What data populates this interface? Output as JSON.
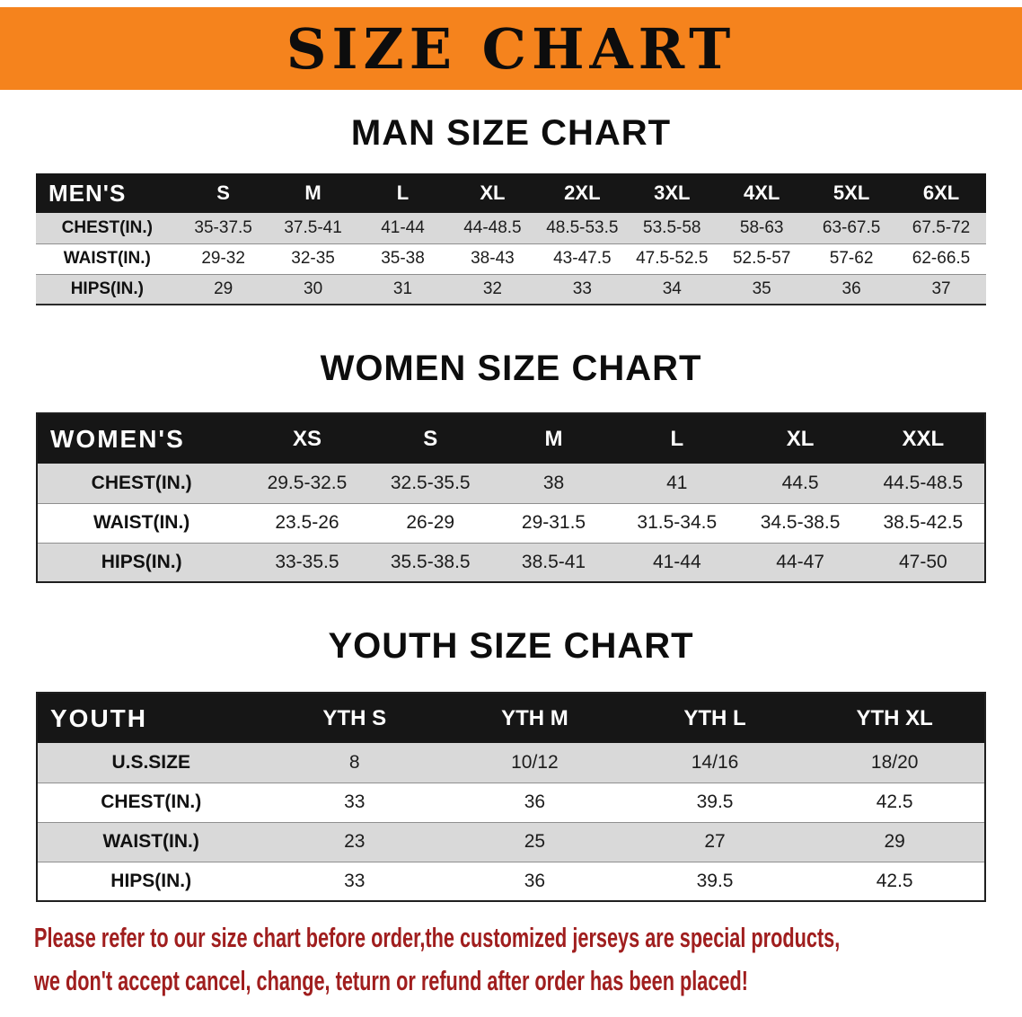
{
  "banner": {
    "title": "SIZE CHART"
  },
  "colors": {
    "banner-bg": "#f5831d",
    "table-header-bg": "#161616",
    "row-alt-bg": "#d9d9d9",
    "note-text": "#a01e1e"
  },
  "men": {
    "heading": "MAN SIZE CHART",
    "header": [
      "MEN'S",
      "S",
      "M",
      "L",
      "XL",
      "2XL",
      "3XL",
      "4XL",
      "5XL",
      "6XL"
    ],
    "rows": [
      {
        "label": "CHEST(IN.)",
        "values": [
          "35-37.5",
          "37.5-41",
          "41-44",
          "44-48.5",
          "48.5-53.5",
          "53.5-58",
          "58-63",
          "63-67.5",
          "67.5-72"
        ]
      },
      {
        "label": "WAIST(IN.)",
        "values": [
          "29-32",
          "32-35",
          "35-38",
          "38-43",
          "43-47.5",
          "47.5-52.5",
          "52.5-57",
          "57-62",
          "62-66.5"
        ]
      },
      {
        "label": "HIPS(IN.)",
        "values": [
          "29",
          "30",
          "31",
          "32",
          "33",
          "34",
          "35",
          "36",
          "37"
        ]
      }
    ]
  },
  "women": {
    "heading": "WOMEN SIZE CHART",
    "header": [
      "WOMEN'S",
      "XS",
      "S",
      "M",
      "L",
      "XL",
      "XXL"
    ],
    "rows": [
      {
        "label": "CHEST(IN.)",
        "values": [
          "29.5-32.5",
          "32.5-35.5",
          "38",
          "41",
          "44.5",
          "44.5-48.5"
        ]
      },
      {
        "label": "WAIST(IN.)",
        "values": [
          "23.5-26",
          "26-29",
          "29-31.5",
          "31.5-34.5",
          "34.5-38.5",
          "38.5-42.5"
        ]
      },
      {
        "label": "HIPS(IN.)",
        "values": [
          "33-35.5",
          "35.5-38.5",
          "38.5-41",
          "41-44",
          "44-47",
          "47-50"
        ]
      }
    ]
  },
  "youth": {
    "heading": "YOUTH SIZE CHART",
    "header": [
      "YOUTH",
      "YTH S",
      "YTH M",
      "YTH L",
      "YTH XL"
    ],
    "rows": [
      {
        "label": "U.S.SIZE",
        "values": [
          "8",
          "10/12",
          "14/16",
          "18/20"
        ]
      },
      {
        "label": "CHEST(IN.)",
        "values": [
          "33",
          "36",
          "39.5",
          "42.5"
        ]
      },
      {
        "label": "WAIST(IN.)",
        "values": [
          "23",
          "25",
          "27",
          "29"
        ]
      },
      {
        "label": "HIPS(IN.)",
        "values": [
          "33",
          "36",
          "39.5",
          "42.5"
        ]
      }
    ]
  },
  "footer": {
    "line1": "Please refer to our size chart before order,the customized jerseys are special products,",
    "line2": "we don't accept cancel, change, teturn or refund after order has been placed!"
  }
}
